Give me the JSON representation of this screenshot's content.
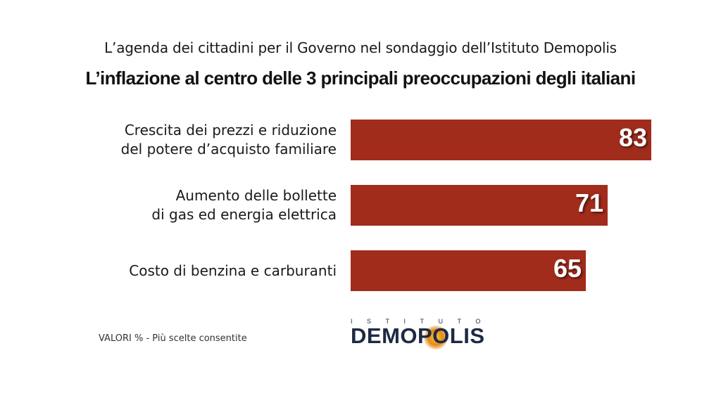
{
  "header": {
    "subtitle": "L’agenda dei cittadini per il Governo nel sondaggio dell’Istituto Demopolis",
    "title": "L’inflazione al centro delle 3 principali preoccupazioni degli italiani"
  },
  "chart_data": {
    "type": "bar",
    "orientation": "horizontal",
    "title": "L’inflazione al centro delle 3 principali preoccupazioni degli italiani",
    "subtitle": "L’agenda dei cittadini per il Governo nel sondaggio dell’Istituto Demopolis",
    "categories": [
      "Crescita dei prezzi e riduzione\ndel potere d’acquisto familiare",
      "Aumento delle bollette\ndi gas ed energia elettrica",
      "Costo di benzina e carburanti"
    ],
    "values": [
      83,
      71,
      65
    ],
    "value_labels": [
      "83",
      "71",
      "65"
    ],
    "xlim": [
      0,
      100
    ],
    "grid": false,
    "legend": "none",
    "bar_color": "#a12c1c"
  },
  "footnote": "VALORI % - Più scelte consentite",
  "logo": {
    "top_text": "ISTITUTO",
    "main_text": "DEMOPOLIS"
  },
  "colors": {
    "bar": "#a12c1c",
    "logo_navy": "#1c2a44",
    "logo_sun": "#e48a16"
  }
}
